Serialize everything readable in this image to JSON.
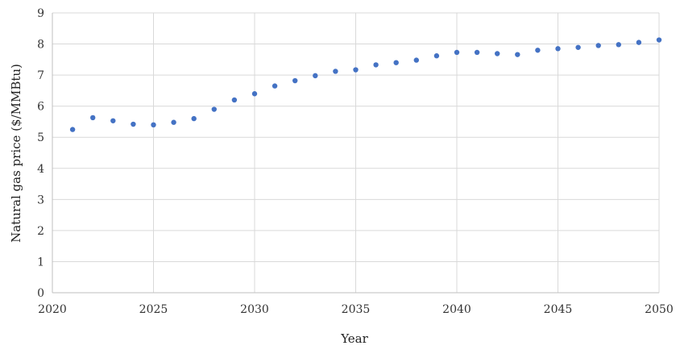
{
  "chart_data": {
    "type": "scatter",
    "title": "",
    "xlabel": "Year",
    "ylabel": "Natural gas price ($/MMBtu)",
    "xlim": [
      2020,
      2050
    ],
    "ylim": [
      0,
      9
    ],
    "x_ticks": [
      2020,
      2025,
      2030,
      2035,
      2040,
      2045,
      2050
    ],
    "y_ticks": [
      0,
      1,
      2,
      3,
      4,
      5,
      6,
      7,
      8,
      9
    ],
    "grid": true,
    "legend": "none",
    "marker_color": "#4472c4",
    "series": [
      {
        "x": [
          2021,
          2022,
          2023,
          2024,
          2025,
          2026,
          2027,
          2028,
          2029,
          2030,
          2031,
          2032,
          2033,
          2034,
          2035,
          2036,
          2037,
          2038,
          2039,
          2040,
          2041,
          2042,
          2043,
          2044,
          2045,
          2046,
          2047,
          2048,
          2049,
          2050
        ],
        "y": [
          5.25,
          5.63,
          5.53,
          5.42,
          5.4,
          5.48,
          5.6,
          5.9,
          6.2,
          6.4,
          6.65,
          6.82,
          6.98,
          7.12,
          7.17,
          7.33,
          7.4,
          7.48,
          7.62,
          7.73,
          7.73,
          7.69,
          7.66,
          7.8,
          7.85,
          7.89,
          7.95,
          7.98,
          8.05,
          8.13
        ]
      }
    ]
  }
}
